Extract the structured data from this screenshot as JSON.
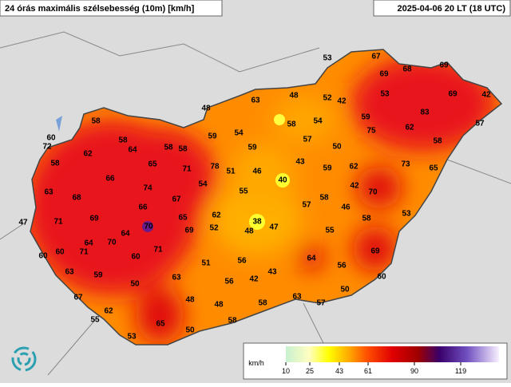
{
  "header": {
    "title": "24 órás maximális szélsebesség (10m) [km/h]",
    "time": "2025-04-06 20 LT (18 UTC)"
  },
  "stations": [
    53,
    67,
    69,
    68,
    69,
    69,
    42,
    53,
    83,
    57,
    62,
    75,
    59,
    58,
    52,
    42,
    48,
    63,
    48,
    58,
    54,
    54,
    59,
    57,
    50,
    59,
    43,
    59,
    62,
    73,
    65,
    40,
    46,
    51,
    78,
    71,
    58,
    58,
    65,
    64,
    58,
    58,
    60,
    72,
    62,
    58,
    66,
    74,
    67,
    63,
    68,
    55,
    54,
    42,
    70,
    58,
    57,
    46,
    58,
    53,
    66,
    62,
    65,
    69,
    52,
    38,
    47,
    48,
    70,
    64,
    71,
    69,
    47,
    64,
    70,
    71,
    60,
    60,
    71,
    60,
    55,
    69,
    64,
    56,
    51,
    56,
    43,
    42,
    56,
    63,
    59,
    63,
    50,
    60,
    50,
    67,
    48,
    48,
    58,
    63,
    57,
    62,
    55,
    58,
    65,
    50,
    53
  ],
  "legend": {
    "unit": "km/h",
    "ticks": [
      10,
      25,
      43,
      61,
      90,
      119
    ]
  }
}
